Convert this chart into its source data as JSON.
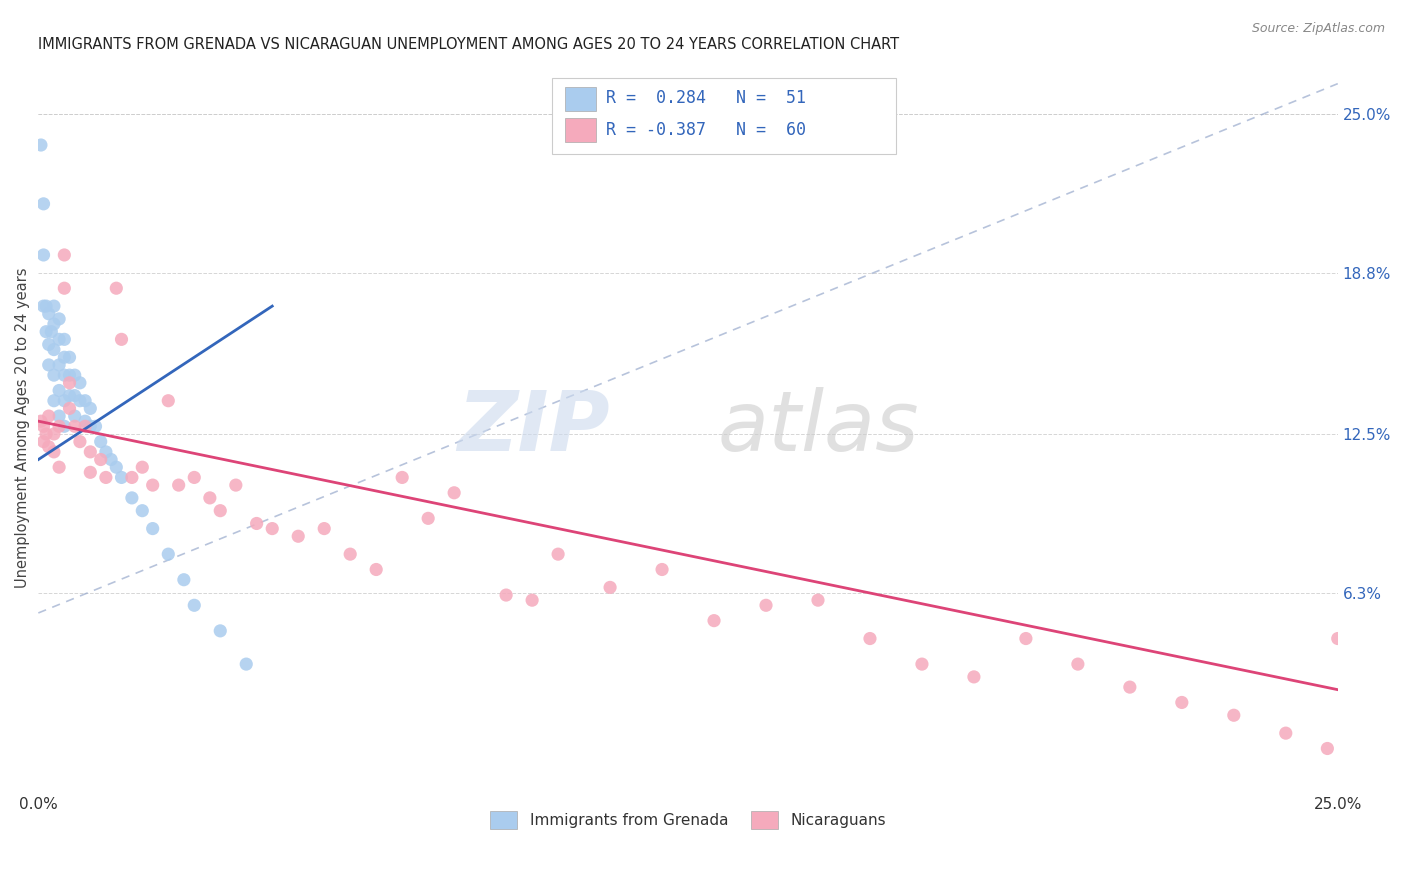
{
  "title": "IMMIGRANTS FROM GRENADA VS NICARAGUAN UNEMPLOYMENT AMONG AGES 20 TO 24 YEARS CORRELATION CHART",
  "source": "Source: ZipAtlas.com",
  "ylabel": "Unemployment Among Ages 20 to 24 years",
  "xlim": [
    0.0,
    0.25
  ],
  "ylim": [
    -0.015,
    0.27
  ],
  "ytick_positions": [
    0.063,
    0.125,
    0.188,
    0.25
  ],
  "ytick_labels": [
    "6.3%",
    "12.5%",
    "18.8%",
    "25.0%"
  ],
  "legend_text1": "R =  0.284   N =  51",
  "legend_text2": "R = -0.387   N =  60",
  "blue_scatter_color": "#aaccee",
  "pink_scatter_color": "#f5aabc",
  "blue_line_color": "#3366bb",
  "pink_line_color": "#dd4477",
  "dash_line_color": "#99aacc",
  "legend_text_color": "#3366bb",
  "watermark_zip_color": "#ccdaee",
  "watermark_atlas_color": "#cccccc",
  "grid_color": "#cccccc",
  "title_color": "#222222",
  "ylabel_color": "#444444",
  "tick_color": "#3366bb",
  "source_color": "#888888",
  "bottom_legend_color": "#333333",
  "grenada_x": [
    0.0005,
    0.001,
    0.001,
    0.001,
    0.0015,
    0.0015,
    0.002,
    0.002,
    0.002,
    0.0025,
    0.003,
    0.003,
    0.003,
    0.003,
    0.003,
    0.004,
    0.004,
    0.004,
    0.004,
    0.004,
    0.005,
    0.005,
    0.005,
    0.005,
    0.005,
    0.006,
    0.006,
    0.006,
    0.007,
    0.007,
    0.007,
    0.008,
    0.008,
    0.009,
    0.009,
    0.01,
    0.01,
    0.011,
    0.012,
    0.013,
    0.014,
    0.015,
    0.016,
    0.018,
    0.02,
    0.022,
    0.025,
    0.028,
    0.03,
    0.035,
    0.04
  ],
  "grenada_y": [
    0.238,
    0.215,
    0.195,
    0.175,
    0.175,
    0.165,
    0.172,
    0.16,
    0.152,
    0.165,
    0.175,
    0.168,
    0.158,
    0.148,
    0.138,
    0.17,
    0.162,
    0.152,
    0.142,
    0.132,
    0.162,
    0.155,
    0.148,
    0.138,
    0.128,
    0.155,
    0.148,
    0.14,
    0.148,
    0.14,
    0.132,
    0.145,
    0.138,
    0.138,
    0.13,
    0.135,
    0.128,
    0.128,
    0.122,
    0.118,
    0.115,
    0.112,
    0.108,
    0.1,
    0.095,
    0.088,
    0.078,
    0.068,
    0.058,
    0.048,
    0.035
  ],
  "nicaragua_x": [
    0.0005,
    0.001,
    0.001,
    0.0015,
    0.002,
    0.002,
    0.003,
    0.003,
    0.004,
    0.004,
    0.005,
    0.005,
    0.006,
    0.006,
    0.007,
    0.008,
    0.009,
    0.01,
    0.01,
    0.012,
    0.013,
    0.015,
    0.016,
    0.018,
    0.02,
    0.022,
    0.025,
    0.027,
    0.03,
    0.033,
    0.035,
    0.038,
    0.042,
    0.045,
    0.05,
    0.055,
    0.06,
    0.065,
    0.07,
    0.075,
    0.08,
    0.09,
    0.095,
    0.1,
    0.11,
    0.12,
    0.13,
    0.14,
    0.15,
    0.16,
    0.17,
    0.18,
    0.19,
    0.2,
    0.21,
    0.22,
    0.23,
    0.24,
    0.248,
    0.25
  ],
  "nicaragua_y": [
    0.13,
    0.128,
    0.122,
    0.125,
    0.132,
    0.12,
    0.125,
    0.118,
    0.128,
    0.112,
    0.195,
    0.182,
    0.145,
    0.135,
    0.128,
    0.122,
    0.128,
    0.118,
    0.11,
    0.115,
    0.108,
    0.182,
    0.162,
    0.108,
    0.112,
    0.105,
    0.138,
    0.105,
    0.108,
    0.1,
    0.095,
    0.105,
    0.09,
    0.088,
    0.085,
    0.088,
    0.078,
    0.072,
    0.108,
    0.092,
    0.102,
    0.062,
    0.06,
    0.078,
    0.065,
    0.072,
    0.052,
    0.058,
    0.06,
    0.045,
    0.035,
    0.03,
    0.045,
    0.035,
    0.026,
    0.02,
    0.015,
    0.008,
    0.002,
    0.045
  ],
  "blue_line_x": [
    0.0,
    0.045
  ],
  "pink_line_x": [
    0.0,
    0.25
  ],
  "blue_line_y_start": 0.115,
  "blue_line_y_end": 0.175,
  "pink_line_y_start": 0.13,
  "pink_line_y_end": 0.025,
  "dash_line_x": [
    0.0,
    0.25
  ],
  "dash_line_y": [
    0.055,
    0.262
  ]
}
